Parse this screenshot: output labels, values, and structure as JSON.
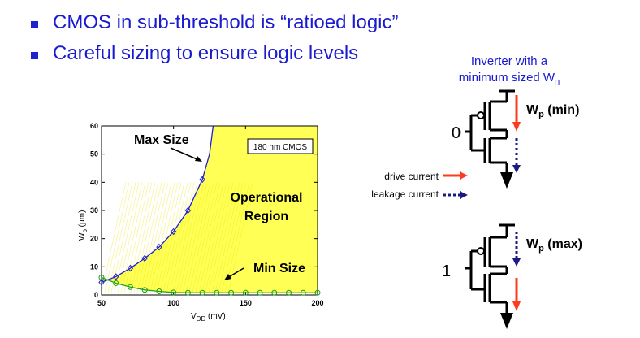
{
  "bullets": [
    "CMOS in sub-threshold is “ratioed logic”",
    "Careful sizing to ensure logic levels"
  ],
  "colors": {
    "bullet": "#2020d0",
    "title_text": "#1a1ad0",
    "region": "#ffff55",
    "max_curve": "#1f1fd0",
    "min_curve": "#1aa01a",
    "drive_arrow": "#ff3b1f",
    "leak_arrow": "#1a1a80"
  },
  "chart_data": {
    "type": "line",
    "title": "",
    "xlabel_main": "V",
    "xlabel_sub": "DD",
    "xlabel_unit": "(mV)",
    "ylabel_main": "W",
    "ylabel_sub": "p",
    "ylabel_unit": "(µm)",
    "xlim": [
      50,
      200
    ],
    "ylim": [
      0,
      60
    ],
    "xticks": [
      "50",
      "100",
      "150",
      "200"
    ],
    "yticks": [
      "0",
      "10",
      "20",
      "30",
      "40",
      "50",
      "60"
    ],
    "box_label": "180 nm CMOS",
    "series": [
      {
        "name": "Max Size",
        "marker": "diamond",
        "x": [
          50,
          60,
          70,
          80,
          90,
          100,
          110,
          120
        ],
        "y": [
          4.5,
          6.5,
          9.5,
          13,
          17,
          22.5,
          30,
          41
        ]
      },
      {
        "name": "Min Size",
        "marker": "circle",
        "x": [
          50,
          60,
          70,
          80,
          90,
          100,
          110,
          120,
          130,
          140,
          150,
          160,
          170,
          180,
          190,
          200
        ],
        "y": [
          6.2,
          4.2,
          2.8,
          1.8,
          1.3,
          0.9,
          0.8,
          0.8,
          0.8,
          0.8,
          0.8,
          0.8,
          0.8,
          0.8,
          0.8,
          0.8
        ]
      }
    ],
    "annotations": {
      "max_size": "Max Size",
      "region_line1": "Operational",
      "region_line2": "Region",
      "min_size": "Min Size"
    }
  },
  "inverter_title_line1": "Inverter with a",
  "inverter_title_line2_main": "minimum sized W",
  "inverter_title_line2_sub": "n",
  "top_inverter": {
    "input": "0",
    "label_main": "W",
    "label_sub": "p",
    "label_suffix": " (min)"
  },
  "bottom_inverter": {
    "input": "1",
    "label_main": "W",
    "label_sub": "p",
    "label_suffix": " (max)"
  },
  "legend": {
    "drive": "drive current",
    "leakage": "leakage current"
  }
}
